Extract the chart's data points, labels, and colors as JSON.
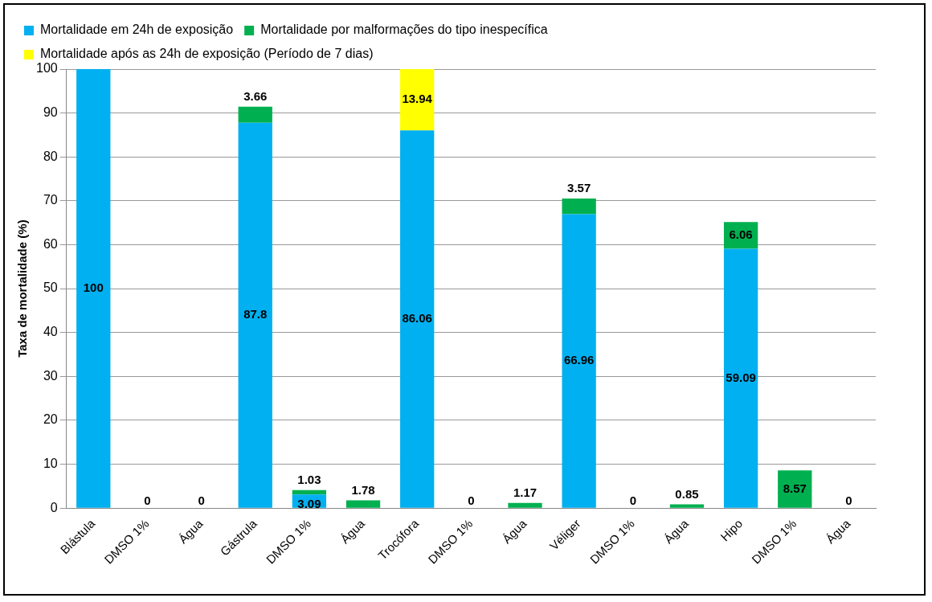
{
  "chart_data": {
    "type": "bar",
    "stacked": true,
    "ylabel": "Taxa de mortalidade (%)",
    "categories": [
      "Blástula",
      "DMSO 1%",
      "Água",
      "Gástrula",
      "DMSO 1%",
      "Água",
      "Trocófora",
      "DMSO 1%",
      "Água",
      "Véliger",
      "DMSO 1%",
      "Água",
      "Hipo",
      "DMSO 1%",
      "Água"
    ],
    "series": [
      {
        "name": "Mortalidade em 24h de exposição",
        "color": "#00b0f0",
        "values": [
          100,
          0,
          0,
          87.8,
          3.09,
          0,
          86.06,
          0,
          0,
          66.96,
          0,
          0,
          59.09,
          0,
          0
        ],
        "value_labels": [
          "100",
          null,
          null,
          "87.8",
          "3.09",
          null,
          "86.06",
          null,
          null,
          "66.96",
          null,
          null,
          "59.09",
          null,
          null
        ]
      },
      {
        "name": "Mortalidade por malformações do tipo inespecífica",
        "color": "#00b050",
        "values": [
          0,
          0,
          0,
          3.66,
          1.03,
          1.78,
          0,
          0,
          1.17,
          3.57,
          0,
          0.85,
          6.06,
          8.57,
          0
        ],
        "value_labels": [
          null,
          null,
          null,
          "3.66",
          "1.03",
          "1.78",
          null,
          null,
          "1.17",
          "3.57",
          null,
          "0.85",
          "6.06",
          "8.57",
          null
        ]
      },
      {
        "name": "Mortalidade após as 24h de exposição (Período de 7 dias)",
        "color": "#ffff00",
        "values": [
          0,
          0,
          0,
          0,
          0,
          0,
          13.94,
          0,
          0,
          0,
          0,
          0,
          0,
          0,
          0
        ],
        "value_labels": [
          null,
          "0",
          "0",
          null,
          null,
          null,
          "13.94",
          "0",
          null,
          null,
          "0",
          null,
          null,
          null,
          "0"
        ]
      }
    ],
    "ylim": [
      0,
      100
    ],
    "yticks": [
      0,
      10,
      20,
      30,
      40,
      50,
      60,
      70,
      80,
      90,
      100
    ],
    "grid": "y",
    "legend": "top"
  }
}
